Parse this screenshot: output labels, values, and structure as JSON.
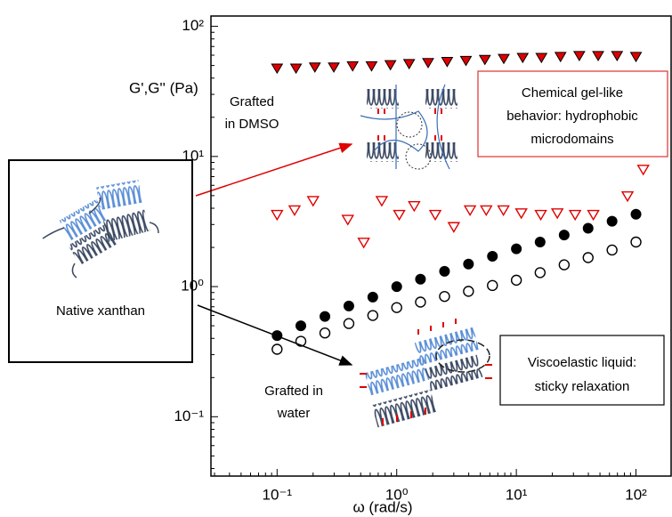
{
  "chart_data": {
    "type": "scatter",
    "xscale": "log",
    "yscale": "log",
    "xlim": [
      0.028,
      200
    ],
    "ylim": [
      0.035,
      120
    ],
    "xticks": [
      {
        "value": 0.1,
        "label": "10⁻¹"
      },
      {
        "value": 1,
        "label": "10⁰"
      },
      {
        "value": 10,
        "label": "10¹"
      },
      {
        "value": 100,
        "label": "10²"
      }
    ],
    "yticks": [
      {
        "value": 0.1,
        "label": "10⁻¹"
      },
      {
        "value": 1,
        "label": "10⁰"
      },
      {
        "value": 10,
        "label": "10¹"
      },
      {
        "value": 100,
        "label": "10²"
      }
    ],
    "x_label": "ω (rad/s)",
    "y_label": "G',G'' (Pa)",
    "series": [
      {
        "color": "#e00000",
        "marker": "triangle-down",
        "filled": true,
        "x": [
          0.1,
          0.144,
          0.207,
          0.298,
          0.428,
          0.616,
          0.886,
          1.27,
          1.83,
          2.64,
          3.79,
          5.46,
          7.85,
          11.3,
          16.2,
          23.4,
          33.6,
          48.3,
          69.5,
          100
        ],
        "values": [
          48,
          48,
          49,
          49,
          50,
          50,
          51,
          52,
          53,
          54,
          55,
          56,
          57,
          58,
          58,
          59,
          60,
          60,
          60,
          59
        ]
      },
      {
        "color": "#e00000",
        "marker": "triangle-down",
        "filled": false,
        "x": [
          0.1,
          0.14,
          0.2,
          0.39,
          0.53,
          0.75,
          1.05,
          1.4,
          2.1,
          3.0,
          4.1,
          5.6,
          7.8,
          11,
          16,
          22,
          31,
          44,
          85,
          115
        ],
        "values": [
          3.6,
          3.9,
          4.6,
          3.3,
          2.2,
          4.6,
          3.6,
          4.2,
          3.6,
          2.9,
          3.9,
          3.9,
          3.9,
          3.7,
          3.6,
          3.7,
          3.6,
          3.6,
          5.0,
          8.0
        ]
      },
      {
        "color": "#000000",
        "marker": "circle",
        "filled": true,
        "x": [
          0.1,
          0.158,
          0.251,
          0.398,
          0.631,
          1,
          1.58,
          2.51,
          3.98,
          6.31,
          10,
          15.8,
          25.1,
          39.8,
          63.1,
          100
        ],
        "values": [
          0.42,
          0.5,
          0.59,
          0.71,
          0.83,
          1.0,
          1.14,
          1.31,
          1.49,
          1.71,
          1.95,
          2.2,
          2.49,
          2.81,
          3.18,
          3.6
        ]
      },
      {
        "color": "#000000",
        "marker": "circle",
        "filled": false,
        "x": [
          0.1,
          0.158,
          0.251,
          0.398,
          0.631,
          1,
          1.58,
          2.51,
          3.98,
          6.31,
          10,
          15.8,
          25.1,
          39.8,
          63.1,
          100
        ],
        "values": [
          0.33,
          0.38,
          0.44,
          0.52,
          0.6,
          0.69,
          0.76,
          0.84,
          0.92,
          1.02,
          1.12,
          1.28,
          1.47,
          1.67,
          1.91,
          2.2
        ]
      }
    ],
    "annotations": [
      {
        "lines": [
          "Grafted",
          "in DMSO"
        ]
      },
      {
        "lines": [
          "Chemical gel-like",
          "behavior: hydrophobic",
          "microdomains"
        ]
      },
      {
        "lines": [
          "Native xanthan"
        ]
      },
      {
        "lines": [
          "Grafted in",
          "water"
        ]
      },
      {
        "lines": [
          "Viscoelastic liquid:",
          "sticky relaxation"
        ]
      }
    ]
  }
}
